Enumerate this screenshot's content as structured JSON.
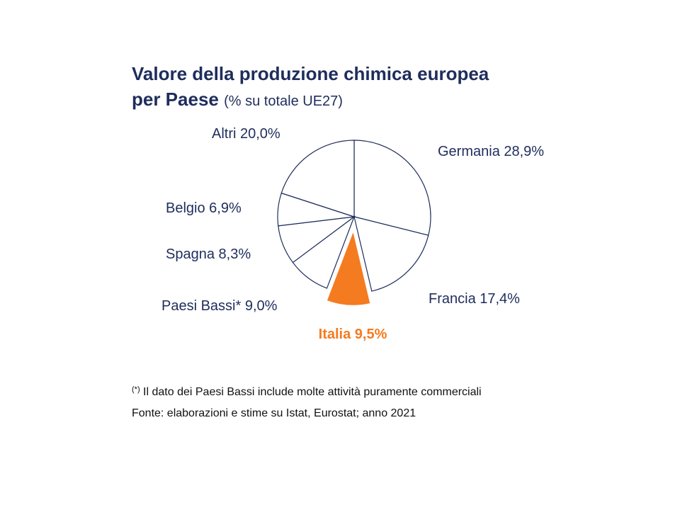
{
  "title": {
    "line1": "Valore della produzione chimica europea",
    "line2": "per Paese",
    "subtitle": "(% su totale UE27)"
  },
  "colors": {
    "text": "#1f2d5c",
    "highlight": "#f47b20",
    "slice_fill": "#ffffff",
    "slice_stroke": "#1f2d5c"
  },
  "chart_data": {
    "type": "pie",
    "unit": "%",
    "start": "12 o'clock",
    "direction": "clockwise",
    "slices": [
      {
        "label": "Germania 28,9%",
        "name": "Germania",
        "value": 28.9,
        "highlight": false
      },
      {
        "label": "Francia 17,4%",
        "name": "Francia",
        "value": 17.4,
        "highlight": false
      },
      {
        "label": "Italia 9,5%",
        "name": "Italia",
        "value": 9.5,
        "highlight": true,
        "exploded": true
      },
      {
        "label": "Paesi Bassi* 9,0%",
        "name": "Paesi Bassi*",
        "value": 9.0,
        "highlight": false
      },
      {
        "label": "Spagna 8,3%",
        "name": "Spagna",
        "value": 8.3,
        "highlight": false
      },
      {
        "label": "Belgio 6,9%",
        "name": "Belgio",
        "value": 6.9,
        "highlight": false
      },
      {
        "label": "Altri 20,0%",
        "name": "Altri",
        "value": 20.0,
        "highlight": false
      }
    ]
  },
  "notes": {
    "footnote_mark": "(*)",
    "footnote_text": " Il dato dei Paesi Bassi include molte attività puramente commerciali",
    "source": "Fonte: elaborazioni e stime su Istat, Eurostat; anno 2021"
  }
}
